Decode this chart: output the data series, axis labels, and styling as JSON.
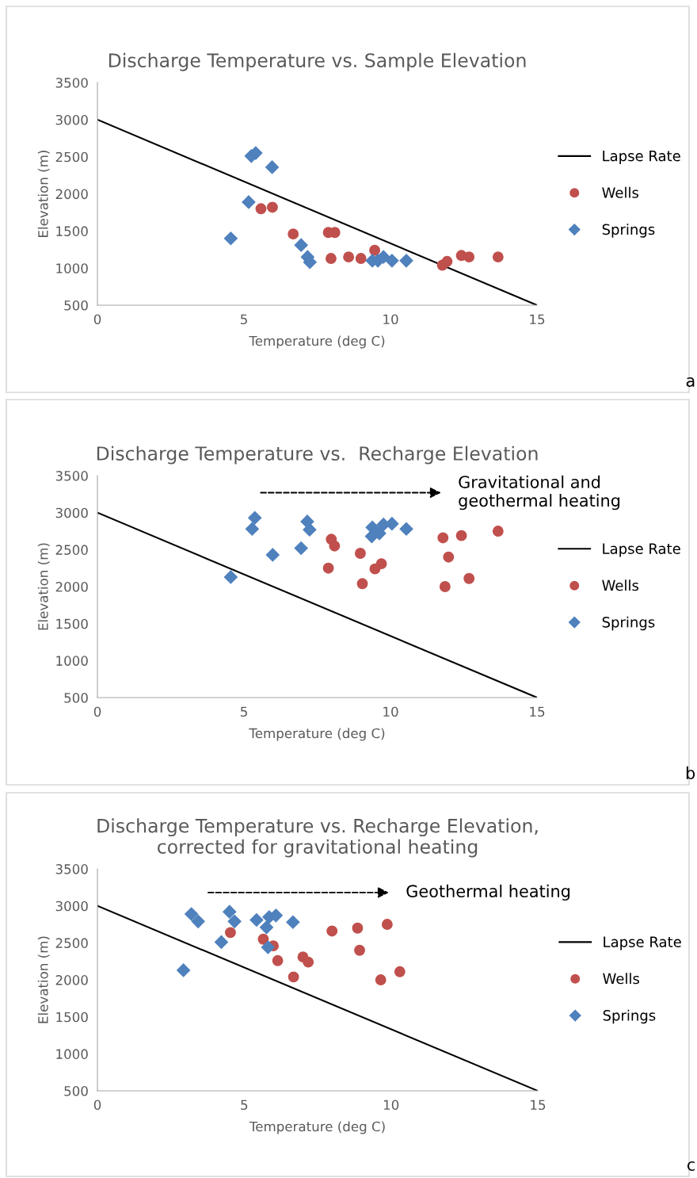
{
  "chart_data": [
    {
      "type": "scatter",
      "title": "Discharge Temperature vs. Sample Elevation",
      "xlabel": "Temperature (deg C)",
      "ylabel": "Elevation (m)",
      "xlim": [
        0,
        15
      ],
      "xticks": [
        0,
        5,
        10,
        15
      ],
      "ylim": [
        500,
        3500
      ],
      "yticks": [
        500,
        1000,
        1500,
        2000,
        2500,
        3000,
        3500
      ],
      "grid": false,
      "legend": "right",
      "annotations": [
        "a"
      ],
      "series": [
        {
          "name": "Lapse Rate",
          "type": "line",
          "color": "#000000",
          "marker": "none",
          "x": [
            0,
            15
          ],
          "values": [
            3000,
            500
          ]
        },
        {
          "name": "Wells",
          "color": "#c0504d",
          "marker": "circle",
          "x": [
            5.58,
            5.97,
            6.68,
            7.88,
            8.1,
            7.97,
            8.57,
            8.99,
            9.46,
            11.77,
            11.93,
            12.42,
            12.68,
            13.67
          ],
          "values": [
            1800,
            1820,
            1460,
            1480,
            1480,
            1130,
            1150,
            1130,
            1240,
            1040,
            1090,
            1170,
            1150,
            1150
          ]
        },
        {
          "name": "Springs",
          "color": "#4f81bd",
          "marker": "diamond",
          "x": [
            5.25,
            5.4,
            5.96,
            5.16,
            4.55,
            6.95,
            7.17,
            7.25,
            9.38,
            9.57,
            9.76,
            10.05,
            10.54
          ],
          "values": [
            2510,
            2550,
            2360,
            1890,
            1400,
            1310,
            1150,
            1080,
            1100,
            1100,
            1150,
            1100,
            1100
          ]
        }
      ]
    },
    {
      "type": "scatter",
      "title": "Discharge Temperature vs.  Recharge Elevation",
      "xlabel": "Temperature (deg C)",
      "ylabel": "Elevation (m)",
      "xlim": [
        0,
        15
      ],
      "xticks": [
        0,
        5,
        10,
        15
      ],
      "ylim": [
        500,
        3500
      ],
      "yticks": [
        500,
        1000,
        1500,
        2000,
        2500,
        3000,
        3500
      ],
      "grid": false,
      "legend": "right",
      "annotations": [
        "Gravitational and\ngeothermal heating",
        "b"
      ],
      "series": [
        {
          "name": "Lapse Rate",
          "type": "line",
          "color": "#000000",
          "marker": "none",
          "x": [
            0,
            15
          ],
          "values": [
            3000,
            500
          ]
        },
        {
          "name": "Wells",
          "color": "#c0504d",
          "marker": "circle",
          "x": [
            7.98,
            8.09,
            7.88,
            8.97,
            9.04,
            9.47,
            9.69,
            11.79,
            12.42,
            11.98,
            11.86,
            12.68,
            13.67
          ],
          "values": [
            2640,
            2550,
            2250,
            2450,
            2040,
            2240,
            2310,
            2660,
            2690,
            2400,
            2000,
            2110,
            2750
          ]
        },
        {
          "name": "Springs",
          "color": "#4f81bd",
          "marker": "diamond",
          "x": [
            5.37,
            5.28,
            7.16,
            7.24,
            5.98,
            6.95,
            4.55,
            9.38,
            9.36,
            9.62,
            9.76,
            10.05,
            10.54
          ],
          "values": [
            2930,
            2780,
            2880,
            2770,
            2430,
            2520,
            2130,
            2800,
            2680,
            2720,
            2840,
            2850,
            2780
          ]
        }
      ]
    },
    {
      "type": "scatter",
      "title": "Discharge Temperature vs. Recharge Elevation,\ncorrected for gravitational heating",
      "xlabel": "Temperature (deg C)",
      "ylabel": "Elevation (m)",
      "xlim": [
        0,
        15
      ],
      "xticks": [
        0,
        5,
        10,
        15
      ],
      "ylim": [
        500,
        3500
      ],
      "yticks": [
        500,
        1000,
        1500,
        2000,
        2500,
        3000,
        3500
      ],
      "grid": false,
      "legend": "right",
      "annotations": [
        "Geothermal heating",
        "c"
      ],
      "series": [
        {
          "name": "Lapse Rate",
          "type": "line",
          "color": "#000000",
          "marker": "none",
          "x": [
            0,
            15
          ],
          "values": [
            3000,
            500
          ]
        },
        {
          "name": "Wells",
          "color": "#c0504d",
          "marker": "circle",
          "x": [
            4.53,
            5.65,
            5.99,
            6.14,
            6.68,
            7.0,
            7.18,
            7.99,
            8.86,
            8.93,
            9.87,
            9.65,
            10.3
          ],
          "values": [
            2640,
            2550,
            2460,
            2260,
            2040,
            2310,
            2240,
            2660,
            2700,
            2400,
            2750,
            2000,
            2110
          ]
        },
        {
          "name": "Springs",
          "color": "#4f81bd",
          "marker": "diamond",
          "x": [
            3.2,
            3.43,
            4.5,
            4.67,
            4.22,
            2.93,
            5.42,
            5.85,
            6.08,
            5.76,
            5.81,
            6.66
          ],
          "values": [
            2890,
            2790,
            2920,
            2790,
            2510,
            2130,
            2810,
            2850,
            2870,
            2710,
            2440,
            2780
          ]
        }
      ]
    }
  ]
}
